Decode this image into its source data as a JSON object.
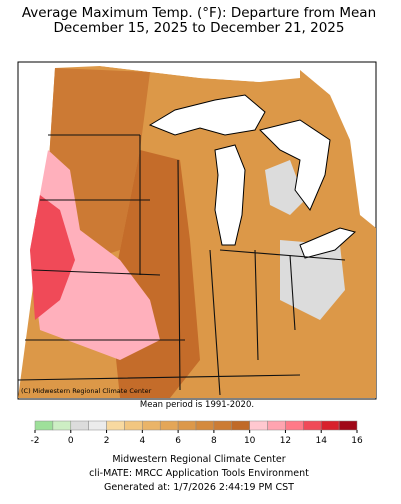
{
  "header": {
    "title": "Average Maximum Temp. (°F): Departure from Mean",
    "subtitle": "December 15, 2025 to December 21, 2025"
  },
  "map": {
    "credit": "(C) Midwestern Regional Climate Center"
  },
  "note": "Mean period is 1991-2020.",
  "legend": {
    "ticks": [
      -2,
      0,
      2,
      4,
      6,
      8,
      10,
      12,
      14,
      16
    ],
    "colors": [
      "#9ee09a",
      "#cdeec4",
      "#dcdcdc",
      "#ececec",
      "#f8d9a0",
      "#f2c680",
      "#eab468",
      "#e4a658",
      "#dc984a",
      "#d48a3e",
      "#cc7c34",
      "#c06a28",
      "#ffc8d0",
      "#ffa4b0",
      "#ff7a88",
      "#f04a58",
      "#d8202c",
      "#a00818"
    ]
  },
  "footer": {
    "line1": "Midwestern Regional Climate Center",
    "line2": "cli-MATE: MRCC Application Tools Environment",
    "line3": "Generated at: 1/7/2026 2:44:19 PM CST"
  }
}
